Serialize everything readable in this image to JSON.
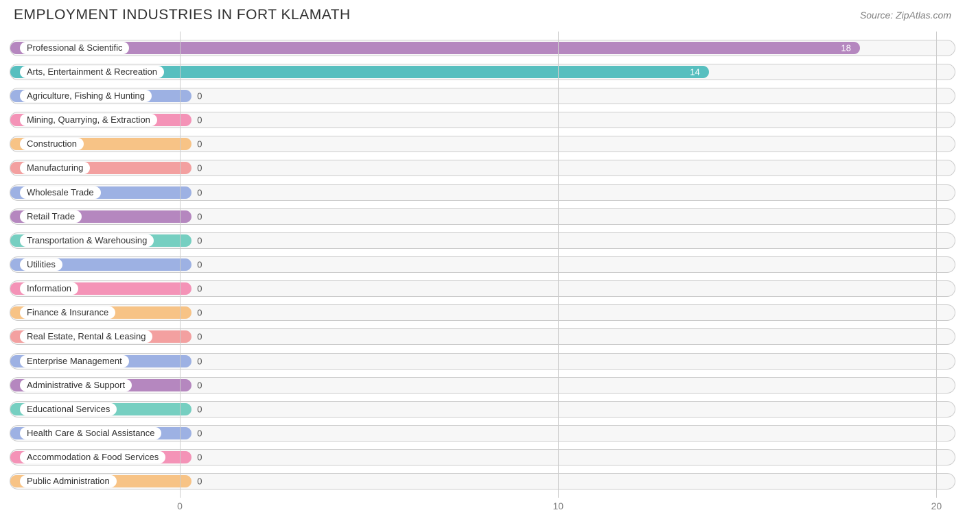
{
  "header": {
    "title": "EMPLOYMENT INDUSTRIES IN FORT KLAMATH",
    "source": "Source: ZipAtlas.com"
  },
  "chart": {
    "type": "horizontal-bar",
    "background_color": "#ffffff",
    "track_bg": "#f7f7f7",
    "track_border": "#cccccc",
    "grid_color": "#cccccc",
    "label_fontsize": 13,
    "value_fontsize": 13,
    "xlim": [
      -4.5,
      20.5
    ],
    "xticks": [
      0,
      10,
      20
    ],
    "zero_bar_extent": 0.3,
    "rows": [
      {
        "label": "Professional & Scientific",
        "value": 18,
        "color": "#b587bf"
      },
      {
        "label": "Arts, Entertainment & Recreation",
        "value": 14,
        "color": "#57bfbf"
      },
      {
        "label": "Agriculture, Fishing & Hunting",
        "value": 0,
        "color": "#9db1e3"
      },
      {
        "label": "Mining, Quarrying, & Extraction",
        "value": 0,
        "color": "#f493b7"
      },
      {
        "label": "Construction",
        "value": 0,
        "color": "#f7c386"
      },
      {
        "label": "Manufacturing",
        "value": 0,
        "color": "#f3a0a0"
      },
      {
        "label": "Wholesale Trade",
        "value": 0,
        "color": "#9db1e3"
      },
      {
        "label": "Retail Trade",
        "value": 0,
        "color": "#b587bf"
      },
      {
        "label": "Transportation & Warehousing",
        "value": 0,
        "color": "#76cfc1"
      },
      {
        "label": "Utilities",
        "value": 0,
        "color": "#9db1e3"
      },
      {
        "label": "Information",
        "value": 0,
        "color": "#f493b7"
      },
      {
        "label": "Finance & Insurance",
        "value": 0,
        "color": "#f7c386"
      },
      {
        "label": "Real Estate, Rental & Leasing",
        "value": 0,
        "color": "#f3a0a0"
      },
      {
        "label": "Enterprise Management",
        "value": 0,
        "color": "#9db1e3"
      },
      {
        "label": "Administrative & Support",
        "value": 0,
        "color": "#b587bf"
      },
      {
        "label": "Educational Services",
        "value": 0,
        "color": "#76cfc1"
      },
      {
        "label": "Health Care & Social Assistance",
        "value": 0,
        "color": "#9db1e3"
      },
      {
        "label": "Accommodation & Food Services",
        "value": 0,
        "color": "#f493b7"
      },
      {
        "label": "Public Administration",
        "value": 0,
        "color": "#f7c386"
      }
    ]
  }
}
